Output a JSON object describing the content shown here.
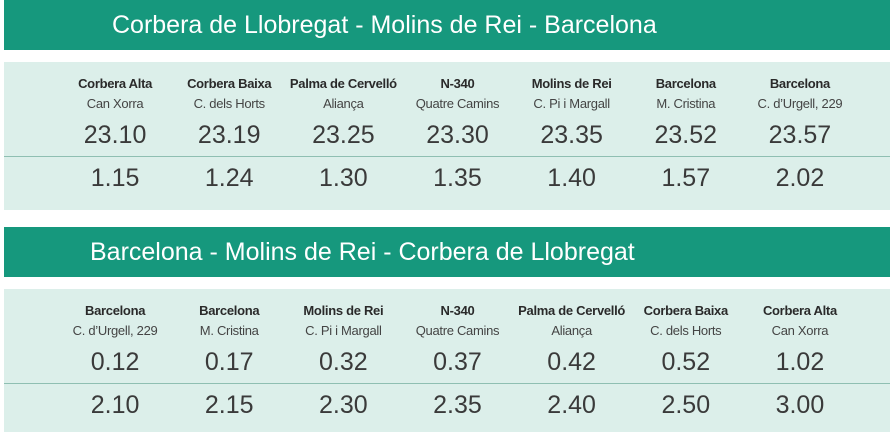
{
  "sections": [
    {
      "title": "Corbera de Llobregat - Molins de Rei - Barcelona",
      "stops": [
        {
          "name": "Corbera Alta",
          "sub": "Can Xorra"
        },
        {
          "name": "Corbera Baixa",
          "sub": "C. dels Horts"
        },
        {
          "name": "Palma de Cervelló",
          "sub": "Aliança"
        },
        {
          "name": "N-340",
          "sub": "Quatre Camins"
        },
        {
          "name": "Molins de Rei",
          "sub": "C. Pi i Margall"
        },
        {
          "name": "Barcelona",
          "sub": "M. Cristina"
        },
        {
          "name": "Barcelona",
          "sub": "C. d’Urgell, 229"
        }
      ],
      "times": [
        [
          "23.10",
          "23.19",
          "23.25",
          "23.30",
          "23.35",
          "23.52",
          "23.57"
        ],
        [
          "1.15",
          "1.24",
          "1.30",
          "1.35",
          "1.40",
          "1.57",
          "2.02"
        ]
      ]
    },
    {
      "title": "Barcelona - Molins de Rei - Corbera de Llobregat",
      "stops": [
        {
          "name": "Barcelona",
          "sub": "C. d’Urgell, 229"
        },
        {
          "name": "Barcelona",
          "sub": "M. Cristina"
        },
        {
          "name": "Molins de Rei",
          "sub": "C. Pi i Margall"
        },
        {
          "name": "N-340",
          "sub": "Quatre Camins"
        },
        {
          "name": "Palma de Cervelló",
          "sub": "Aliança"
        },
        {
          "name": "Corbera Baixa",
          "sub": "C. dels Horts"
        },
        {
          "name": "Corbera Alta",
          "sub": "Can Xorra"
        }
      ],
      "times": [
        [
          "0.12",
          "0.17",
          "0.32",
          "0.37",
          "0.42",
          "0.52",
          "1.02"
        ],
        [
          "2.10",
          "2.15",
          "2.30",
          "2.35",
          "2.40",
          "2.50",
          "3.00"
        ]
      ]
    }
  ]
}
